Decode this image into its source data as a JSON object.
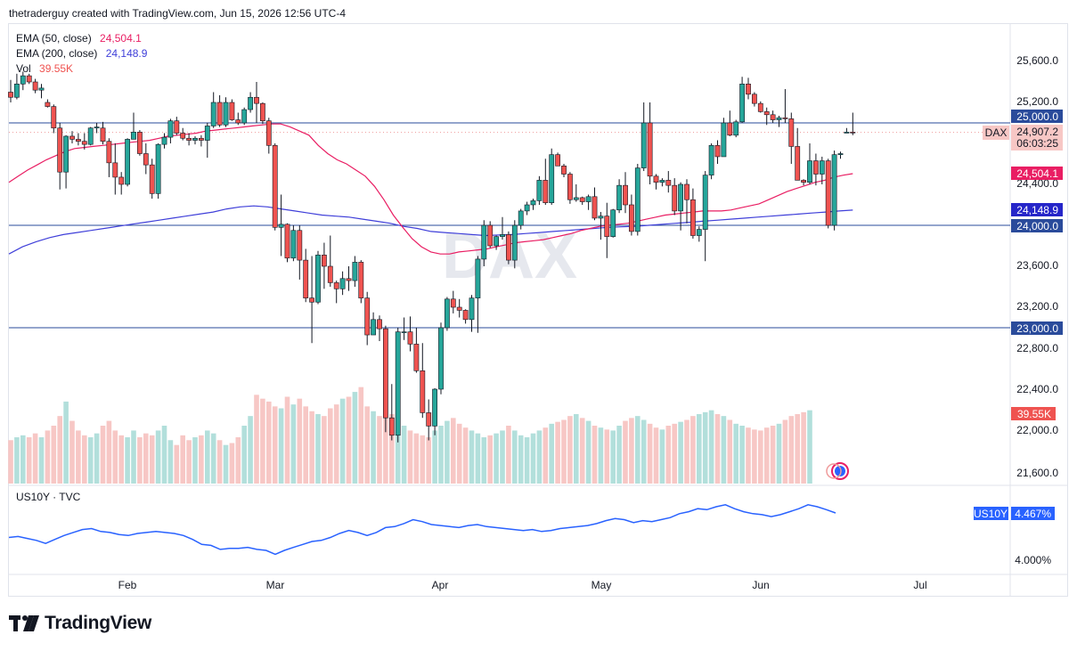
{
  "header": {
    "text": "thetraderguy created with TradingView.com, Jun 15, 2026 12:56 UTC-4"
  },
  "legend": {
    "ema50": {
      "label": "EMA (50, close)",
      "value": "24,504.1",
      "color": "#e91e63"
    },
    "ema200": {
      "label": "EMA (200, close)",
      "value": "24,148.9",
      "color": "#3f3fd9"
    },
    "vol": {
      "label": "Vol",
      "value": "39.55K",
      "color": "#ef5350"
    }
  },
  "watermark": "DAX",
  "pane2": {
    "label": "US10Y · TVC",
    "badge": "US10Y",
    "badge_value": "4.467%",
    "tick": "4.000%"
  },
  "price_axis": {
    "ticks": [
      "25,600.0",
      "25,200.0",
      "24,400.0",
      "23,600.0",
      "23,200.0",
      "22,800.0",
      "22,400.0",
      "22,000.0",
      "21,600.0"
    ],
    "badges": {
      "level_25000": "25,000.0",
      "dax_symbol": "DAX",
      "dax_price": "24,907.2",
      "countdown": "06:03:25",
      "ema50": "24,504.1",
      "ema200": "24,148.9",
      "level_24000": "24,000.0",
      "level_23000": "23,000.0",
      "volume": "39.55K"
    }
  },
  "time_axis": {
    "labels": [
      "Feb",
      "Mar",
      "Apr",
      "May",
      "Jun",
      "Jul"
    ]
  },
  "footer": {
    "brand": "TradingView"
  },
  "colors": {
    "up": "#26a69a",
    "down": "#ef5350",
    "up_vol": "#b2dfdb",
    "down_vol": "#f7c7c5",
    "hline": "#2a4b9b",
    "us10y": "#2962ff"
  },
  "chart_data": {
    "type": "candlestick",
    "symbol": "DAX",
    "price_ylim": [
      21600,
      25800
    ],
    "horizontal_levels": [
      25000,
      24000,
      23000
    ],
    "last_price": 24907.2,
    "candles": [
      [
        25300,
        25420,
        25200,
        25250
      ],
      [
        25250,
        25480,
        25230,
        25380
      ],
      [
        25380,
        25500,
        25320,
        25460
      ],
      [
        25460,
        25480,
        25380,
        25400
      ],
      [
        25400,
        25430,
        25290,
        25320
      ],
      [
        25320,
        25380,
        25240,
        25340
      ],
      [
        25200,
        25230,
        25150,
        25160
      ],
      [
        25160,
        25180,
        24900,
        24950
      ],
      [
        24950,
        25000,
        24350,
        24520
      ],
      [
        24520,
        24880,
        24360,
        24870
      ],
      [
        24870,
        24920,
        24800,
        24840
      ],
      [
        24840,
        24900,
        24780,
        24820
      ],
      [
        24820,
        24900,
        24740,
        24790
      ],
      [
        24790,
        24960,
        24780,
        24950
      ],
      [
        24950,
        25000,
        24900,
        24960
      ],
      [
        24950,
        25010,
        24790,
        24820
      ],
      [
        24820,
        24850,
        24470,
        24610
      ],
      [
        24610,
        24800,
        24300,
        24470
      ],
      [
        24470,
        24520,
        24300,
        24400
      ],
      [
        24400,
        24850,
        24380,
        24840
      ],
      [
        24840,
        25100,
        24840,
        24910
      ],
      [
        24910,
        24930,
        24680,
        24700
      ],
      [
        24700,
        24800,
        24500,
        24590
      ],
      [
        24590,
        24650,
        24260,
        24310
      ],
      [
        24310,
        24800,
        24260,
        24790
      ],
      [
        24790,
        24900,
        24750,
        24860
      ],
      [
        24860,
        25040,
        24800,
        25020
      ],
      [
        25020,
        25060,
        24880,
        24900
      ],
      [
        24900,
        24950,
        24830,
        24850
      ],
      [
        24850,
        24900,
        24780,
        24830
      ],
      [
        24830,
        24870,
        24790,
        24850
      ],
      [
        24850,
        24880,
        24770,
        24830
      ],
      [
        24830,
        25000,
        24660,
        24970
      ],
      [
        24970,
        25300,
        24950,
        25200
      ],
      [
        25200,
        25270,
        24960,
        24980
      ],
      [
        24980,
        25250,
        24960,
        25200
      ],
      [
        25200,
        25230,
        25020,
        25030
      ],
      [
        25030,
        25100,
        24980,
        25000
      ],
      [
        25000,
        25150,
        24980,
        25130
      ],
      [
        25130,
        25300,
        25100,
        25250
      ],
      [
        25250,
        25400,
        25000,
        25190
      ],
      [
        25190,
        25200,
        24990,
        25020
      ],
      [
        25020,
        25050,
        24700,
        24780
      ],
      [
        24780,
        24800,
        23950,
        23980
      ],
      [
        23980,
        24300,
        23700,
        24010
      ],
      [
        24010,
        24020,
        23640,
        23680
      ],
      [
        23680,
        24000,
        23650,
        23950
      ],
      [
        23950,
        24000,
        23470,
        23660
      ],
      [
        23660,
        23770,
        23250,
        23290
      ],
      [
        23290,
        23700,
        22850,
        23250
      ],
      [
        23250,
        23750,
        23230,
        23710
      ],
      [
        23710,
        23830,
        23380,
        23600
      ],
      [
        23600,
        23900,
        23400,
        23440
      ],
      [
        23440,
        23460,
        23240,
        23380
      ],
      [
        23380,
        23550,
        23320,
        23480
      ],
      [
        23480,
        23600,
        23360,
        23460
      ],
      [
        23460,
        23700,
        23400,
        23640
      ],
      [
        23640,
        23660,
        23240,
        23290
      ],
      [
        23290,
        23350,
        22830,
        22930
      ],
      [
        22930,
        23150,
        22950,
        23080
      ],
      [
        23080,
        23120,
        22870,
        22990
      ],
      [
        22990,
        23020,
        21980,
        22120
      ],
      [
        22120,
        22450,
        21900,
        21950
      ],
      [
        21950,
        23000,
        21880,
        22960
      ],
      [
        22960,
        23100,
        22880,
        22960
      ],
      [
        22960,
        23110,
        22770,
        22840
      ],
      [
        22840,
        23000,
        22560,
        22580
      ],
      [
        22580,
        22850,
        22120,
        22170
      ],
      [
        22170,
        22300,
        21900,
        22040
      ],
      [
        22040,
        22410,
        21950,
        22400
      ],
      [
        22400,
        23050,
        22350,
        23000
      ],
      [
        23000,
        23300,
        22970,
        23280
      ],
      [
        23280,
        23360,
        23140,
        23200
      ],
      [
        23200,
        23280,
        23100,
        23170
      ],
      [
        23170,
        23180,
        23040,
        23080
      ],
      [
        23080,
        23320,
        22960,
        23290
      ],
      [
        23290,
        23700,
        22950,
        23670
      ],
      [
        23670,
        24050,
        23600,
        24000
      ],
      [
        24000,
        24040,
        23780,
        23800
      ],
      [
        23800,
        23900,
        23760,
        23890
      ],
      [
        23890,
        24080,
        23860,
        23910
      ],
      [
        23910,
        23940,
        23620,
        23660
      ],
      [
        23660,
        24050,
        23580,
        24000
      ],
      [
        24000,
        24160,
        23960,
        24140
      ],
      [
        24140,
        24230,
        24100,
        24200
      ],
      [
        24200,
        24260,
        24150,
        24240
      ],
      [
        24240,
        24480,
        24200,
        24440
      ],
      [
        24440,
        24650,
        24200,
        24220
      ],
      [
        24220,
        24750,
        24200,
        24690
      ],
      [
        24690,
        24710,
        24580,
        24580
      ],
      [
        24580,
        24600,
        24470,
        24500
      ],
      [
        24500,
        24520,
        24210,
        24250
      ],
      [
        24250,
        24400,
        24230,
        24270
      ],
      [
        24270,
        24280,
        24200,
        24230
      ],
      [
        24230,
        24300,
        24150,
        24280
      ],
      [
        24280,
        24370,
        24050,
        24070
      ],
      [
        24070,
        24130,
        23860,
        24090
      ],
      [
        24090,
        24220,
        23680,
        23890
      ],
      [
        23890,
        24160,
        23880,
        24150
      ],
      [
        24150,
        24450,
        24120,
        24390
      ],
      [
        24390,
        24520,
        24120,
        24200
      ],
      [
        24200,
        24300,
        23900,
        23940
      ],
      [
        23940,
        24600,
        23900,
        24560
      ],
      [
        24560,
        25200,
        24530,
        25000
      ],
      [
        25000,
        25200,
        24400,
        24480
      ],
      [
        24480,
        24500,
        24350,
        24420
      ],
      [
        24420,
        24460,
        24380,
        24440
      ],
      [
        24440,
        24530,
        24320,
        24390
      ],
      [
        24390,
        24460,
        24100,
        24140
      ],
      [
        24140,
        24420,
        23950,
        24400
      ],
      [
        24400,
        24450,
        24020,
        24250
      ],
      [
        24250,
        24360,
        23870,
        23900
      ],
      [
        23900,
        23990,
        23840,
        23960
      ],
      [
        23960,
        24530,
        23650,
        24490
      ],
      [
        24490,
        24800,
        24450,
        24780
      ],
      [
        24780,
        24830,
        24600,
        24670
      ],
      [
        24670,
        25050,
        24700,
        25000
      ],
      [
        25000,
        25120,
        24870,
        24880
      ],
      [
        24880,
        25030,
        24860,
        25010
      ],
      [
        25010,
        25450,
        25000,
        25380
      ],
      [
        25380,
        25440,
        25230,
        25280
      ],
      [
        25280,
        25300,
        25160,
        25190
      ],
      [
        25190,
        25210,
        25100,
        25110
      ],
      [
        25110,
        25150,
        24980,
        25080
      ],
      [
        25080,
        25120,
        25000,
        25030
      ],
      [
        25030,
        25070,
        24960,
        25050
      ],
      [
        25050,
        25330,
        25000,
        25040
      ],
      [
        25040,
        25100,
        24600,
        24770
      ],
      [
        24770,
        24950,
        24440,
        24440
      ],
      [
        24440,
        24450,
        24390,
        24420
      ],
      [
        24420,
        24800,
        24400,
        24630
      ],
      [
        24630,
        24700,
        24390,
        24500
      ],
      [
        24500,
        24670,
        24400,
        24630
      ],
      [
        24630,
        24650,
        23970,
        24000
      ],
      [
        24000,
        24730,
        23950,
        24690
      ],
      [
        24690,
        24720,
        24650,
        24700
      ],
      [
        24900,
        24950,
        24900,
        24910
      ],
      [
        24910,
        25100,
        24880,
        24907.2
      ]
    ],
    "ema50_series": [
      24420,
      24480,
      24540,
      24590,
      24640,
      24680,
      24720,
      24750,
      24760,
      24770,
      24780,
      24790,
      24800,
      24810,
      24820,
      24830,
      24850,
      24870,
      24880,
      24890,
      24900,
      24920,
      24930,
      24940,
      24950,
      24960,
      24970,
      24980,
      24990,
      24990,
      24960,
      24920,
      24880,
      24780,
      24700,
      24640,
      24600,
      24540,
      24480,
      24380,
      24250,
      24100,
      23980,
      23870,
      23790,
      23740,
      23720,
      23720,
      23740,
      23750,
      23760,
      23770,
      23790,
      23810,
      23830,
      23840,
      23850,
      23860,
      23880,
      23900,
      23920,
      23950,
      23970,
      23990,
      24000,
      24010,
      24020,
      24040,
      24060,
      24080,
      24100,
      24110,
      24120,
      24130,
      24140,
      24140,
      24140,
      24150,
      24170,
      24190,
      24210,
      24250,
      24290,
      24330,
      24360,
      24390,
      24420,
      24440,
      24470,
      24490,
      24504.1
    ],
    "ema200_series": [
      23720,
      23790,
      23840,
      23880,
      23910,
      23930,
      23950,
      23970,
      23990,
      24010,
      24030,
      24050,
      24070,
      24090,
      24110,
      24130,
      24160,
      24180,
      24190,
      24180,
      24160,
      24140,
      24120,
      24100,
      24090,
      24080,
      24060,
      24040,
      24020,
      23990,
      23970,
      23940,
      23930,
      23920,
      23910,
      23900,
      23905,
      23910,
      23920,
      23930,
      23940,
      23950,
      23960,
      23970,
      23980,
      23985,
      23990,
      24000,
      24010,
      24020,
      24030,
      24040,
      24050,
      24060,
      24070,
      24080,
      24090,
      24100,
      24110,
      24120,
      24130,
      24140,
      24148.9
    ],
    "volume_ylim": [
      0,
      120
    ],
    "volume": [
      45,
      48,
      50,
      48,
      52,
      48,
      55,
      60,
      70,
      85,
      65,
      55,
      50,
      48,
      52,
      60,
      65,
      55,
      50,
      48,
      55,
      48,
      52,
      50,
      55,
      60,
      45,
      40,
      50,
      45,
      48,
      50,
      55,
      52,
      45,
      40,
      42,
      48,
      60,
      70,
      92,
      88,
      85,
      80,
      78,
      90,
      82,
      88,
      80,
      75,
      72,
      70,
      78,
      82,
      88,
      90,
      95,
      100,
      80,
      75,
      70,
      68,
      72,
      65,
      60,
      55,
      52,
      50,
      48,
      55,
      60,
      65,
      68,
      62,
      58,
      55,
      52,
      48,
      50,
      52,
      55,
      60,
      55,
      50,
      48,
      52,
      55,
      58,
      62,
      64,
      66,
      70,
      72,
      68,
      65,
      60,
      58,
      56,
      55,
      60,
      65,
      68,
      70,
      66,
      62,
      58,
      56,
      60,
      62,
      64,
      66,
      70,
      72,
      74,
      76,
      72,
      70,
      66,
      62,
      60,
      58,
      56,
      55,
      58,
      60,
      62,
      66,
      70,
      72,
      74,
      76
    ],
    "us10y_series": [
      4.22,
      4.23,
      4.21,
      4.19,
      4.16,
      4.2,
      4.24,
      4.27,
      4.3,
      4.31,
      4.28,
      4.27,
      4.25,
      4.24,
      4.26,
      4.27,
      4.28,
      4.27,
      4.26,
      4.24,
      4.2,
      4.15,
      4.14,
      4.1,
      4.11,
      4.11,
      4.12,
      4.1,
      4.09,
      4.05,
      4.09,
      4.12,
      4.15,
      4.18,
      4.19,
      4.22,
      4.26,
      4.29,
      4.27,
      4.24,
      4.27,
      4.32,
      4.33,
      4.36,
      4.4,
      4.38,
      4.35,
      4.34,
      4.33,
      4.32,
      4.34,
      4.35,
      4.33,
      4.32,
      4.31,
      4.3,
      4.29,
      4.3,
      4.28,
      4.29,
      4.31,
      4.32,
      4.33,
      4.34,
      4.36,
      4.39,
      4.41,
      4.4,
      4.37,
      4.39,
      4.38,
      4.4,
      4.42,
      4.46,
      4.48,
      4.51,
      4.5,
      4.53,
      4.55,
      4.51,
      4.48,
      4.46,
      4.45,
      4.43,
      4.45,
      4.48,
      4.51,
      4.55,
      4.53,
      4.5,
      4.467
    ]
  }
}
